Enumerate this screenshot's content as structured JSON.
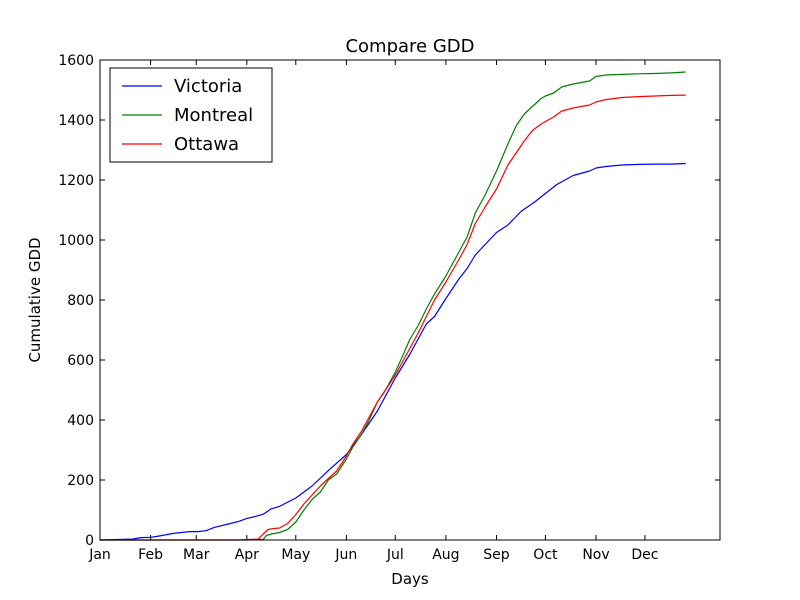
{
  "chart_data": {
    "type": "line",
    "title": "Compare GDD",
    "xlabel": "Days",
    "ylabel": "Cumulative GDD",
    "xlim": [
      0,
      380
    ],
    "ylim": [
      0,
      1600
    ],
    "yticks": [
      0,
      200,
      400,
      600,
      800,
      1000,
      1200,
      1400,
      1600
    ],
    "xticks": [
      {
        "label": "Jan",
        "day": 0
      },
      {
        "label": "Feb",
        "day": 31
      },
      {
        "label": "Mar",
        "day": 59
      },
      {
        "label": "Apr",
        "day": 90
      },
      {
        "label": "May",
        "day": 120
      },
      {
        "label": "Jun",
        "day": 151
      },
      {
        "label": "Jul",
        "day": 181
      },
      {
        "label": "Aug",
        "day": 212
      },
      {
        "label": "Sep",
        "day": 243
      },
      {
        "label": "Oct",
        "day": 273
      },
      {
        "label": "Nov",
        "day": 304
      },
      {
        "label": "Dec",
        "day": 334
      }
    ],
    "legend_position": "top-left",
    "series": [
      {
        "name": "Victoria",
        "color": "#0000ff",
        "x": [
          0,
          20,
          25,
          31,
          35,
          45,
          55,
          60,
          65,
          70,
          80,
          85,
          90,
          95,
          100,
          105,
          110,
          120,
          130,
          140,
          151,
          160,
          170,
          181,
          190,
          200,
          205,
          212,
          220,
          225,
          230,
          236,
          243,
          250,
          258,
          266,
          273,
          280,
          285,
          290,
          300,
          304,
          310,
          320,
          330,
          340,
          350,
          359
        ],
        "y": [
          0,
          3,
          8,
          9,
          12,
          22,
          28,
          28,
          31,
          42,
          55,
          62,
          72,
          78,
          86,
          104,
          112,
          140,
          180,
          232,
          285,
          350,
          430,
          540,
          620,
          720,
          745,
          805,
          870,
          905,
          950,
          985,
          1025,
          1050,
          1095,
          1125,
          1155,
          1185,
          1200,
          1215,
          1230,
          1240,
          1245,
          1250,
          1252,
          1253,
          1253,
          1255
        ]
      },
      {
        "name": "Montreal",
        "color": "#008000",
        "x": [
          0,
          90,
          100,
          102,
          105,
          110,
          115,
          120,
          125,
          130,
          135,
          140,
          145,
          151,
          155,
          160,
          165,
          170,
          175,
          181,
          186,
          190,
          195,
          200,
          205,
          212,
          220,
          225,
          230,
          236,
          243,
          250,
          255,
          260,
          265,
          270,
          273,
          278,
          283,
          290,
          300,
          304,
          310,
          320,
          330,
          340,
          350,
          359
        ],
        "y": [
          0,
          0,
          2,
          15,
          20,
          25,
          35,
          60,
          100,
          135,
          160,
          200,
          220,
          270,
          310,
          350,
          400,
          460,
          500,
          560,
          620,
          670,
          715,
          770,
          820,
          880,
          960,
          1010,
          1090,
          1150,
          1230,
          1320,
          1380,
          1420,
          1445,
          1470,
          1480,
          1490,
          1510,
          1520,
          1530,
          1545,
          1550,
          1552,
          1554,
          1555,
          1557,
          1560
        ]
      },
      {
        "name": "Ottawa",
        "color": "#ff0000",
        "x": [
          0,
          85,
          97,
          100,
          103,
          106,
          110,
          115,
          120,
          125,
          130,
          135,
          140,
          145,
          151,
          155,
          160,
          165,
          170,
          175,
          181,
          186,
          190,
          195,
          200,
          205,
          212,
          220,
          225,
          230,
          236,
          243,
          250,
          255,
          260,
          265,
          270,
          273,
          278,
          283,
          290,
          300,
          304,
          310,
          320,
          330,
          340,
          350,
          359
        ],
        "y": [
          0,
          0,
          3,
          20,
          35,
          38,
          40,
          55,
          85,
          120,
          150,
          180,
          205,
          230,
          280,
          320,
          360,
          410,
          460,
          500,
          550,
          600,
          640,
          690,
          745,
          800,
          860,
          935,
          985,
          1055,
          1110,
          1170,
          1250,
          1290,
          1330,
          1365,
          1385,
          1395,
          1410,
          1430,
          1440,
          1450,
          1460,
          1468,
          1475,
          1478,
          1480,
          1482,
          1483
        ]
      }
    ]
  }
}
